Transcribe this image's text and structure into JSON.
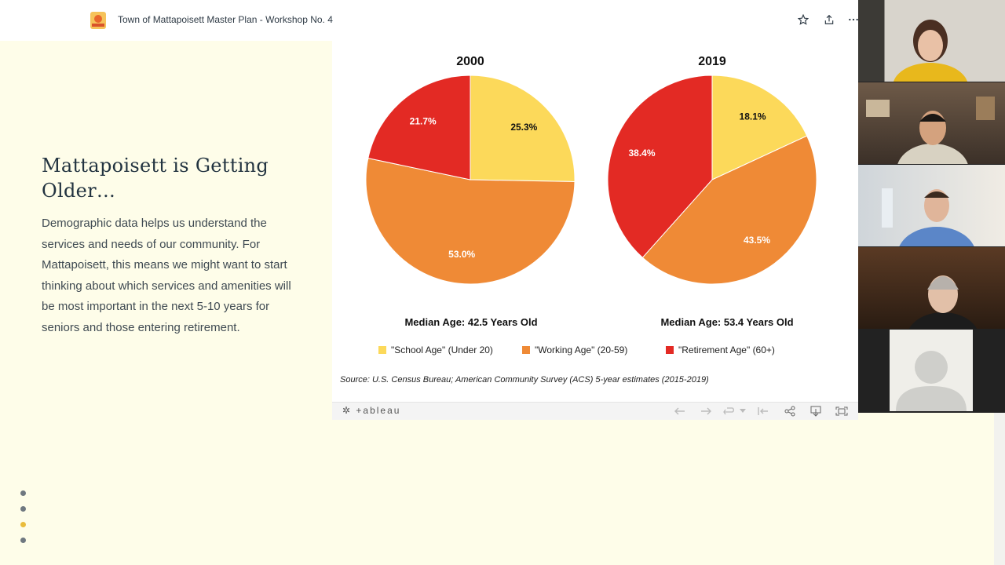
{
  "header": {
    "title": "Town of Mattapoisett Master Plan - Workshop No. 4",
    "icons": [
      "star-icon",
      "share-icon",
      "more-icon"
    ]
  },
  "slide": {
    "heading": "Mattapoisett is Getting Older…",
    "body": "Demographic data helps us understand the services and needs of our community. For Mattapoisett, this means we might want to start thinking about which services and amenities will be most important in the next 5-10 years for seniors and those entering retirement."
  },
  "viz": {
    "median_2000": "Median Age: 42.5 Years Old",
    "median_2019": "Median Age: 53.4 Years Old",
    "source": "Source: U.S. Census Bureau; American Community Survey (ACS) 5-year estimates (2015-2019)",
    "tableau_label": "+ableau"
  },
  "chart_data": {
    "type": "pie",
    "series": [
      {
        "name": "2000",
        "labels": [
          "\"School Age\" (Under 20)",
          "\"Working Age\" (20-59)",
          "\"Retirement Age\" (60+)"
        ],
        "values": [
          25.3,
          53.0,
          21.7
        ],
        "value_labels": [
          "25.3%",
          "53.0%",
          "21.7%"
        ]
      },
      {
        "name": "2019",
        "labels": [
          "\"School Age\" (Under 20)",
          "\"Working Age\" (20-59)",
          "\"Retirement Age\" (60+)"
        ],
        "values": [
          18.1,
          43.5,
          38.4
        ],
        "value_labels": [
          "18.1%",
          "43.5%",
          "38.4%"
        ]
      }
    ],
    "legend": [
      "\"School Age\" (Under 20)",
      "\"Working Age\" (20-59)",
      "\"Retirement Age\" (60+)"
    ],
    "colors": [
      "#fcd95a",
      "#ef8a36",
      "#e32a24"
    ]
  },
  "nav": {
    "slide_count": 4,
    "active_index": 2,
    "dot_color": "#6f7880",
    "active_color": "#e9bc3c"
  },
  "participants": [
    "participant-1",
    "participant-2",
    "participant-3",
    "participant-4",
    "participant-5"
  ]
}
